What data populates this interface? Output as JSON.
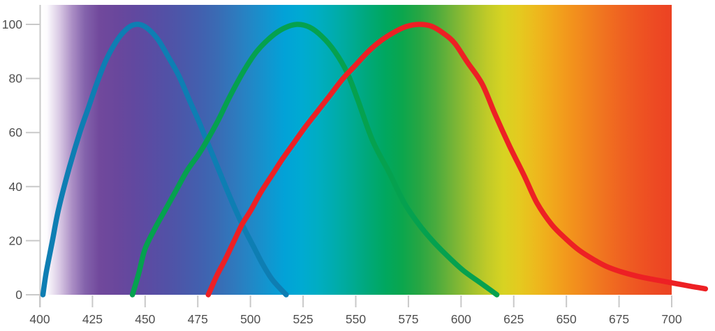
{
  "chart_data": {
    "type": "line",
    "title": "",
    "xlabel": "",
    "ylabel": "",
    "x_axis": {
      "min": 400,
      "max": 700,
      "ticks": [
        400,
        425,
        450,
        475,
        500,
        525,
        550,
        575,
        600,
        625,
        650,
        675,
        700
      ]
    },
    "y_axis": {
      "min": 0,
      "max": 100,
      "ticks": [
        0,
        20,
        40,
        60,
        80,
        100
      ]
    },
    "grid": false,
    "legend": false,
    "series": [
      {
        "id": "blue",
        "name": "blue curve (peak ~445 nm)",
        "color": "#0e7eb3",
        "points": [
          [
            401.5,
            0
          ],
          [
            403,
            8
          ],
          [
            406,
            20
          ],
          [
            409,
            32
          ],
          [
            414,
            47
          ],
          [
            419,
            60
          ],
          [
            423,
            69
          ],
          [
            427,
            78
          ],
          [
            431,
            86
          ],
          [
            435,
            92
          ],
          [
            439,
            96.5
          ],
          [
            443,
            99.3
          ],
          [
            447,
            100
          ],
          [
            451,
            98.6
          ],
          [
            456,
            94.5
          ],
          [
            461,
            88
          ],
          [
            466,
            81
          ],
          [
            471,
            72
          ],
          [
            475,
            65
          ],
          [
            479,
            57.5
          ],
          [
            484,
            48
          ],
          [
            489,
            38.5
          ],
          [
            494,
            29.5
          ],
          [
            498,
            23
          ],
          [
            502,
            17
          ],
          [
            506,
            11
          ],
          [
            510,
            6
          ],
          [
            513.5,
            2.8
          ],
          [
            517,
            0
          ]
        ]
      },
      {
        "id": "green",
        "name": "green curve (peak ~522 nm)",
        "color": "#05a14f",
        "points": [
          [
            444,
            0
          ],
          [
            447,
            8
          ],
          [
            450,
            17
          ],
          [
            455,
            25
          ],
          [
            460,
            32
          ],
          [
            465,
            39
          ],
          [
            470,
            46
          ],
          [
            475,
            51.5
          ],
          [
            479,
            56.5
          ],
          [
            485,
            65
          ],
          [
            490,
            73
          ],
          [
            497,
            83
          ],
          [
            503,
            90
          ],
          [
            510,
            95.5
          ],
          [
            516,
            98.6
          ],
          [
            522,
            100
          ],
          [
            528,
            99
          ],
          [
            534,
            95.5
          ],
          [
            540,
            90
          ],
          [
            546,
            82
          ],
          [
            551,
            72
          ],
          [
            558,
            57
          ],
          [
            566,
            45
          ],
          [
            573,
            34
          ],
          [
            580,
            26
          ],
          [
            587,
            19.5
          ],
          [
            594,
            14
          ],
          [
            601,
            9
          ],
          [
            609,
            4.5
          ],
          [
            613,
            2.3
          ],
          [
            617,
            0
          ]
        ]
      },
      {
        "id": "red",
        "name": "red curve (peak ~580 nm)",
        "color": "#ed2024",
        "points": [
          [
            480,
            0
          ],
          [
            484,
            7
          ],
          [
            488,
            13
          ],
          [
            492,
            19.5
          ],
          [
            496,
            26
          ],
          [
            500,
            31
          ],
          [
            505,
            38
          ],
          [
            510,
            44
          ],
          [
            515,
            50
          ],
          [
            520,
            55.5
          ],
          [
            526,
            62
          ],
          [
            532,
            68
          ],
          [
            538,
            74
          ],
          [
            544,
            80
          ],
          [
            550,
            85
          ],
          [
            556,
            90
          ],
          [
            562,
            94
          ],
          [
            568,
            97
          ],
          [
            574,
            99.2
          ],
          [
            580,
            100
          ],
          [
            586,
            99.3
          ],
          [
            592,
            96.5
          ],
          [
            597,
            93
          ],
          [
            603,
            86
          ],
          [
            610,
            78
          ],
          [
            616,
            67
          ],
          [
            623,
            55
          ],
          [
            630,
            44
          ],
          [
            636,
            34
          ],
          [
            643,
            26
          ],
          [
            650,
            20.5
          ],
          [
            656,
            16.5
          ],
          [
            663,
            13
          ],
          [
            669,
            10.5
          ],
          [
            676,
            8.5
          ],
          [
            683,
            7
          ],
          [
            689,
            6
          ],
          [
            696,
            5
          ],
          [
            703,
            4
          ],
          [
            710,
            3
          ],
          [
            716,
            2.2
          ]
        ]
      }
    ],
    "background_gradient": [
      {
        "nm": 400,
        "color": "#ffffff"
      },
      {
        "nm": 403,
        "color": "#fdfcfe"
      },
      {
        "nm": 409,
        "color": "#d9c9e4"
      },
      {
        "nm": 415,
        "color": "#ab8ec5"
      },
      {
        "nm": 421,
        "color": "#8463ac"
      },
      {
        "nm": 428,
        "color": "#71499c"
      },
      {
        "nm": 436,
        "color": "#6a479c"
      },
      {
        "nm": 444,
        "color": "#62489f"
      },
      {
        "nm": 452,
        "color": "#5a4ca3"
      },
      {
        "nm": 460,
        "color": "#5251a6"
      },
      {
        "nm": 468,
        "color": "#4a58aa"
      },
      {
        "nm": 476,
        "color": "#4260af"
      },
      {
        "nm": 484,
        "color": "#3a6bb4"
      },
      {
        "nm": 492,
        "color": "#2f79bd"
      },
      {
        "nm": 500,
        "color": "#2287c6"
      },
      {
        "nm": 508,
        "color": "#1295cf"
      },
      {
        "nm": 516,
        "color": "#02a2d7"
      },
      {
        "nm": 524,
        "color": "#00aad2"
      },
      {
        "nm": 532,
        "color": "#00adc2"
      },
      {
        "nm": 540,
        "color": "#00acad"
      },
      {
        "nm": 548,
        "color": "#00aa94"
      },
      {
        "nm": 556,
        "color": "#00a878"
      },
      {
        "nm": 564,
        "color": "#00a75f"
      },
      {
        "nm": 572,
        "color": "#0ba64d"
      },
      {
        "nm": 580,
        "color": "#27a643"
      },
      {
        "nm": 588,
        "color": "#4aab3d"
      },
      {
        "nm": 596,
        "color": "#74b437"
      },
      {
        "nm": 604,
        "color": "#9cbf2f"
      },
      {
        "nm": 612,
        "color": "#bfca28"
      },
      {
        "nm": 620,
        "color": "#d7d322"
      },
      {
        "nm": 628,
        "color": "#e5c91f"
      },
      {
        "nm": 636,
        "color": "#edb81d"
      },
      {
        "nm": 644,
        "color": "#f1a61c"
      },
      {
        "nm": 652,
        "color": "#f2941c"
      },
      {
        "nm": 660,
        "color": "#f1831e"
      },
      {
        "nm": 668,
        "color": "#f07220"
      },
      {
        "nm": 676,
        "color": "#ef6221"
      },
      {
        "nm": 684,
        "color": "#ee5522"
      },
      {
        "nm": 692,
        "color": "#ed4a23"
      },
      {
        "nm": 700,
        "color": "#ec4223"
      }
    ]
  },
  "style": {
    "axis_color": "#c9c9c9",
    "label_color": "#4f4f4f",
    "curve_width": 7.5
  }
}
